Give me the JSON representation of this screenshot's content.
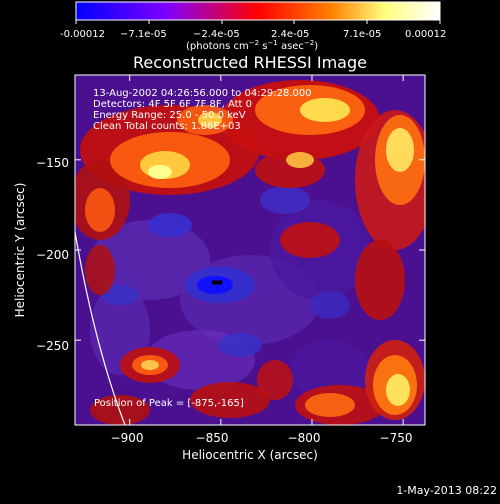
{
  "colorbar": {
    "ticks": [
      "-0.00012",
      "−7.1e-05",
      "−2.4e-05",
      "2.4e-05",
      "7.1e-05",
      "0.00012"
    ],
    "units_prefix": "(photons cm",
    "units_exp1": "−2",
    "units_mid": " s",
    "units_exp2": "−1",
    "units_mid2": " asec",
    "units_exp3": "−2",
    "units_suffix": ")",
    "range": [
      -0.00012,
      0.00012
    ],
    "colors": [
      "#0000ff",
      "#7f00ff",
      "#ff0000",
      "#ff7f00",
      "#ffff80",
      "#ffffff"
    ]
  },
  "chart_data": {
    "type": "heatmap",
    "title": "Reconstructed RHESSI Image",
    "xlabel": "Heliocentric X (arcsec)",
    "ylabel": "Heliocentric Y (arcsec)",
    "xlim": [
      -930,
      -738
    ],
    "ylim": [
      -297,
      -103
    ],
    "xticks": [
      -900,
      -850,
      -800,
      -750
    ],
    "yticks": [
      -150,
      -200,
      -250
    ],
    "xtick_labels": [
      "−900",
      "−850",
      "−800",
      "−750"
    ],
    "ytick_labels": [
      "−150",
      "−200",
      "−250"
    ],
    "annotations": [
      "13-Aug-2002 04:26:56.000 to 04:29:28.000",
      "Detectors: 4F 5F 6F 7F 8F, Att 0",
      "Energy Range: 25.0 - 50.0 keV",
      "Clean    Total counts: 1.86E+03"
    ],
    "peak_label": "Position of Peak = [-875,-165]",
    "peak": [
      -875,
      -165
    ],
    "colormap": "RHESSI blue-purple-red-yellow-white",
    "limb_curve": true
  },
  "footer": {
    "date": "1-May-2013 08:22"
  }
}
